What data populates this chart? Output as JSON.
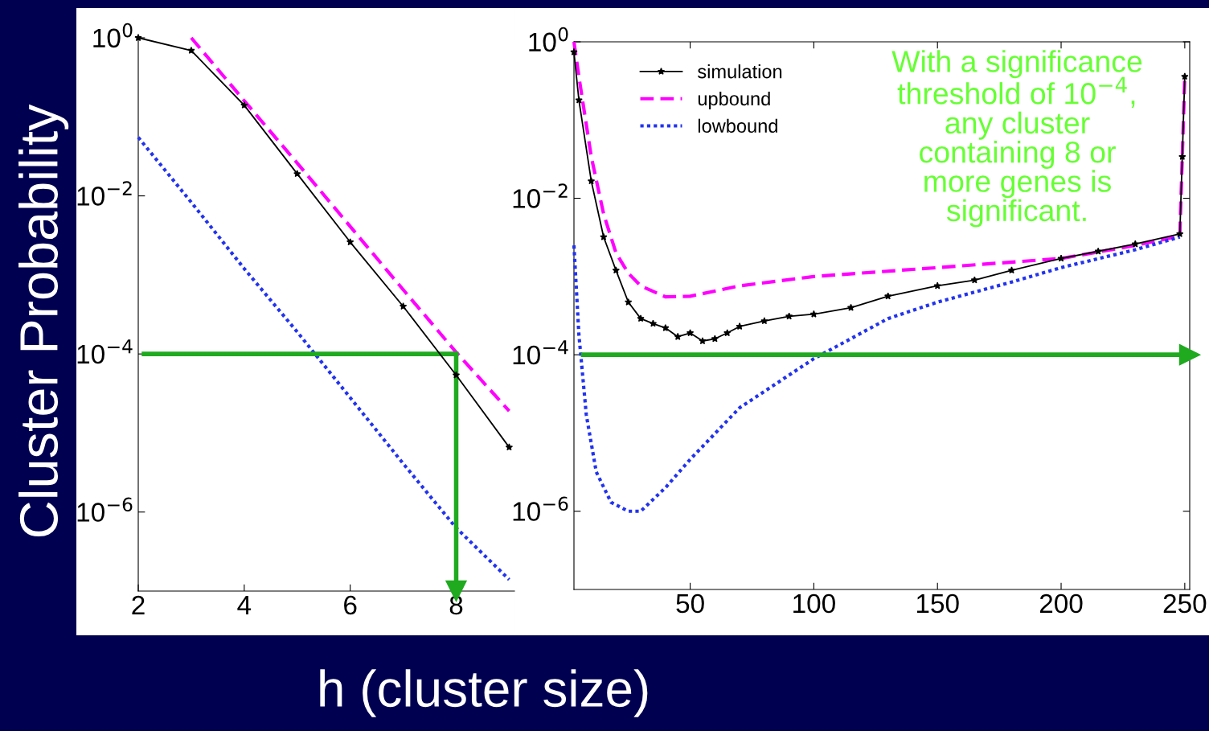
{
  "chart_data": [
    {
      "type": "line",
      "ylabel": "Cluster Probability",
      "xlabel": "h (cluster size)",
      "log": "y",
      "grid": false,
      "legend": false,
      "xlim": [
        2,
        9.1
      ],
      "xticks": [
        2,
        4,
        6,
        8
      ],
      "ylim": [
        1e-07,
        1
      ],
      "yticks": [
        {
          "value": 1,
          "label": "10$^{0}$"
        },
        {
          "value": 0.01,
          "label": "10$^{−2}$"
        },
        {
          "value": 0.0001,
          "label": "10$^{−4}$"
        },
        {
          "value": 1e-06,
          "label": "10$^{−6}$"
        }
      ],
      "ref_lines": [
        {
          "axis": "y",
          "value": 0.0001,
          "color": "#1faa1f"
        },
        {
          "axis": "x",
          "value": 8,
          "color": "#1faa1f"
        }
      ],
      "series": [
        {
          "color": "#000000",
          "marker": "star",
          "line_style": "solid",
          "x": [
            2,
            3,
            4,
            5,
            6,
            7,
            8,
            9
          ],
          "values": [
            1,
            0.69,
            0.14,
            0.019,
            0.0026,
            0.0004,
            5.4e-05,
            6.6e-06
          ]
        },
        {
          "color": "#ff00ff",
          "marker": "none",
          "line_style": "dashed",
          "x": [
            3,
            4,
            5,
            6,
            7,
            8,
            9
          ],
          "values": [
            1,
            0.16,
            0.026,
            0.0041,
            0.00065,
            0.000105,
            1.9e-05
          ]
        },
        {
          "color": "#2233ee",
          "marker": "none",
          "line_style": "dotted",
          "x": [
            2,
            3,
            4,
            5,
            6,
            7,
            8,
            9
          ],
          "values": [
            0.055,
            0.0083,
            0.0012,
            0.00019,
            2.8e-05,
            4.1e-06,
            6.3e-07,
            1.4e-07
          ]
        }
      ]
    },
    {
      "type": "line",
      "log": "y",
      "grid": false,
      "legend": "top left",
      "xlim": [
        3,
        252
      ],
      "xticks": [
        50,
        100,
        150,
        200,
        250
      ],
      "ylim": [
        1e-07,
        1
      ],
      "yticks": [
        {
          "value": 1,
          "label": "10$^{0}$"
        },
        {
          "value": 0.01,
          "label": "10$^{−2}$"
        },
        {
          "value": 0.0001,
          "label": "10$^{−4}$"
        },
        {
          "value": 1e-06,
          "label": "10$^{−6}$"
        }
      ],
      "ref_lines": [
        {
          "axis": "y",
          "value": 0.0001,
          "color": "#1faa1f"
        }
      ],
      "annotations": [
        "With a significance threshold of 10$^{−4}$, any cluster containing 8 or more genes is significant."
      ],
      "series": [
        {
          "name": "simulation",
          "color": "#000000",
          "marker": "star",
          "line_style": "solid",
          "x": [
            3,
            5,
            10,
            15,
            20,
            25,
            30,
            35,
            40,
            45,
            50,
            55,
            60,
            65,
            70,
            80,
            90,
            100,
            115,
            130,
            150,
            165,
            180,
            200,
            215,
            230,
            248,
            249,
            250
          ],
          "values": [
            0.74,
            0.18,
            0.0166,
            0.0032,
            0.0012,
            0.00047,
            0.00029,
            0.00025,
            0.00022,
            0.00017,
            0.00019,
            0.00015,
            0.00016,
            0.00019,
            0.00023,
            0.00027,
            0.00031,
            0.00033,
            0.0004,
            0.00056,
            0.00076,
            0.0009,
            0.0012,
            0.0017,
            0.0021,
            0.0026,
            0.0035,
            0.034,
            0.36
          ]
        },
        {
          "name": "upbound",
          "color": "#ff00ff",
          "marker": "none",
          "line_style": "dashed",
          "x": [
            3,
            5,
            10,
            15,
            20,
            25,
            30,
            40,
            50,
            70,
            100,
            150,
            200,
            230,
            248,
            249,
            250
          ],
          "values": [
            1,
            0.36,
            0.034,
            0.0063,
            0.002,
            0.0011,
            0.00076,
            0.00055,
            0.00056,
            0.00076,
            0.001,
            0.0013,
            0.0017,
            0.0025,
            0.0033,
            0.034,
            0.36
          ]
        },
        {
          "name": "lowbound",
          "color": "#2233ee",
          "marker": "none",
          "line_style": "dotted",
          "x": [
            3,
            5,
            8,
            12,
            18,
            25,
            30,
            40,
            50,
            70,
            100,
            130,
            150,
            180,
            200,
            230,
            248
          ],
          "values": [
            0.0025,
            0.00018,
            1.7e-05,
            3.2e-06,
            1.3e-06,
            1e-06,
            1e-06,
            2e-06,
            4.6e-06,
            2.1e-05,
            8.9e-05,
            0.00029,
            0.00047,
            0.00085,
            0.0013,
            0.0022,
            0.0032
          ]
        }
      ]
    }
  ]
}
